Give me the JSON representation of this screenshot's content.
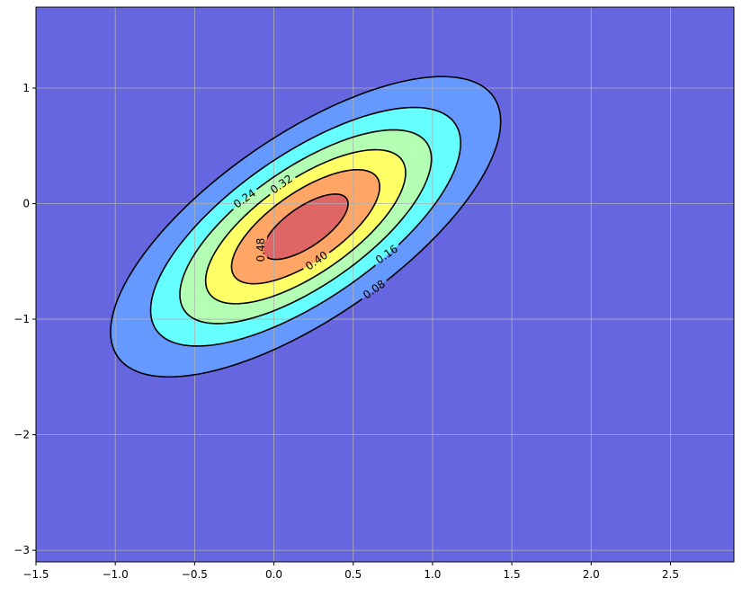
{
  "chart_data": {
    "type": "contour",
    "title": "",
    "xlabel": "",
    "ylabel": "",
    "xlim": [
      -1.5,
      2.9
    ],
    "ylim": [
      -3.1,
      1.7
    ],
    "xticks": [
      "−1.5",
      "−1.0",
      "−0.5",
      "0.0",
      "0.5",
      "1.0",
      "1.5",
      "2.0",
      "2.5"
    ],
    "xtick_values": [
      -1.5,
      -1.0,
      -0.5,
      0.0,
      0.5,
      1.0,
      1.5,
      2.0,
      2.5
    ],
    "yticks": [
      "1",
      "0",
      "−1",
      "−2",
      "−3"
    ],
    "ytick_values": [
      1,
      0,
      -1,
      -2,
      -3
    ],
    "grid": true,
    "field": {
      "kind": "bivariate_normal",
      "mean": [
        0.2,
        -0.2
      ],
      "sigma": [
        0.634,
        0.67
      ],
      "rho": 0.7
    },
    "levels": [
      0.08,
      0.16,
      0.24,
      0.32,
      0.4,
      0.48
    ],
    "fill_colors": [
      "#6666e0",
      "#6699ff",
      "#66ffff",
      "#b3ffb3",
      "#ffff66",
      "#ffa566",
      "#e06666"
    ],
    "line_color": "#000000",
    "grid_color": "#b0b0b0",
    "contour_labels": [
      "0.08",
      "0.16",
      "0.24",
      "0.32",
      "0.40",
      "0.48"
    ]
  }
}
